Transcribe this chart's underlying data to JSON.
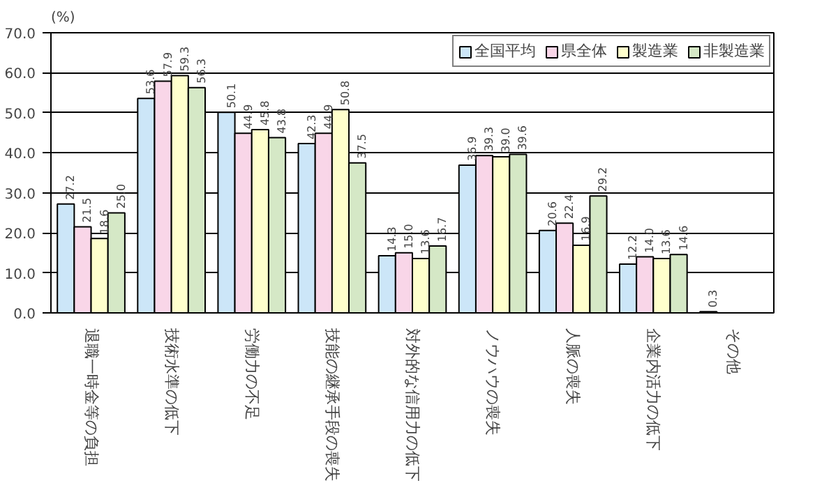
{
  "chart_data": {
    "type": "bar",
    "ylabel": "(%)",
    "categories": [
      "退職一時金等の負担",
      "技術水準の低下",
      "労働力の不足",
      "技能の継承手段の喪失",
      "対外的な信用力の低下",
      "ノウハウの喪失",
      "人脈の喪失",
      "企業内活力の低下",
      "その他"
    ],
    "series": [
      {
        "name": "全国平均",
        "color": "#cce6f8",
        "values": [
          27.2,
          53.6,
          50.1,
          42.3,
          14.3,
          36.9,
          20.6,
          12.2,
          0.3
        ],
        "value_labels": [
          "27.2",
          "53.6",
          "50.1",
          "42.3",
          "14.3",
          "36.9",
          "20.6",
          "12.2",
          "0.3"
        ]
      },
      {
        "name": "県全体",
        "color": "#f9d6e8",
        "values": [
          21.5,
          57.9,
          44.9,
          44.9,
          15.0,
          39.3,
          22.4,
          14.0,
          null
        ],
        "value_labels": [
          "21.5",
          "57.9",
          "44.9",
          "44.9",
          "15.0",
          "39.3",
          "22.4",
          "14.0",
          null
        ]
      },
      {
        "name": "製造業",
        "color": "#ffffcc",
        "values": [
          18.6,
          59.3,
          45.8,
          50.8,
          13.6,
          39.0,
          16.9,
          13.6,
          null
        ],
        "value_labels": [
          "18.6",
          "59.3",
          "45.8",
          "50.8",
          "13.6",
          "39.0",
          "16.9",
          "13.6",
          null
        ]
      },
      {
        "name": "非製造業",
        "color": "#d5e8c6",
        "values": [
          25.0,
          56.3,
          43.8,
          37.5,
          16.7,
          39.6,
          29.2,
          14.6,
          null
        ],
        "value_labels": [
          "25.0",
          "56.3",
          "43.8",
          "37.5",
          "16.7",
          "39.6",
          "29.2",
          "14.6",
          null
        ]
      }
    ],
    "ylim": [
      0,
      70
    ],
    "yticks": [
      {
        "value": 0,
        "label": "0.0"
      },
      {
        "value": 10,
        "label": "10.0"
      },
      {
        "value": 20,
        "label": "20.0"
      },
      {
        "value": 30,
        "label": "30.0"
      },
      {
        "value": 40,
        "label": "40.0"
      },
      {
        "value": 50,
        "label": "50.0"
      },
      {
        "value": 60,
        "label": "60.0"
      },
      {
        "value": 70,
        "label": "70.0"
      }
    ],
    "grid": "y",
    "legend": "top right"
  }
}
